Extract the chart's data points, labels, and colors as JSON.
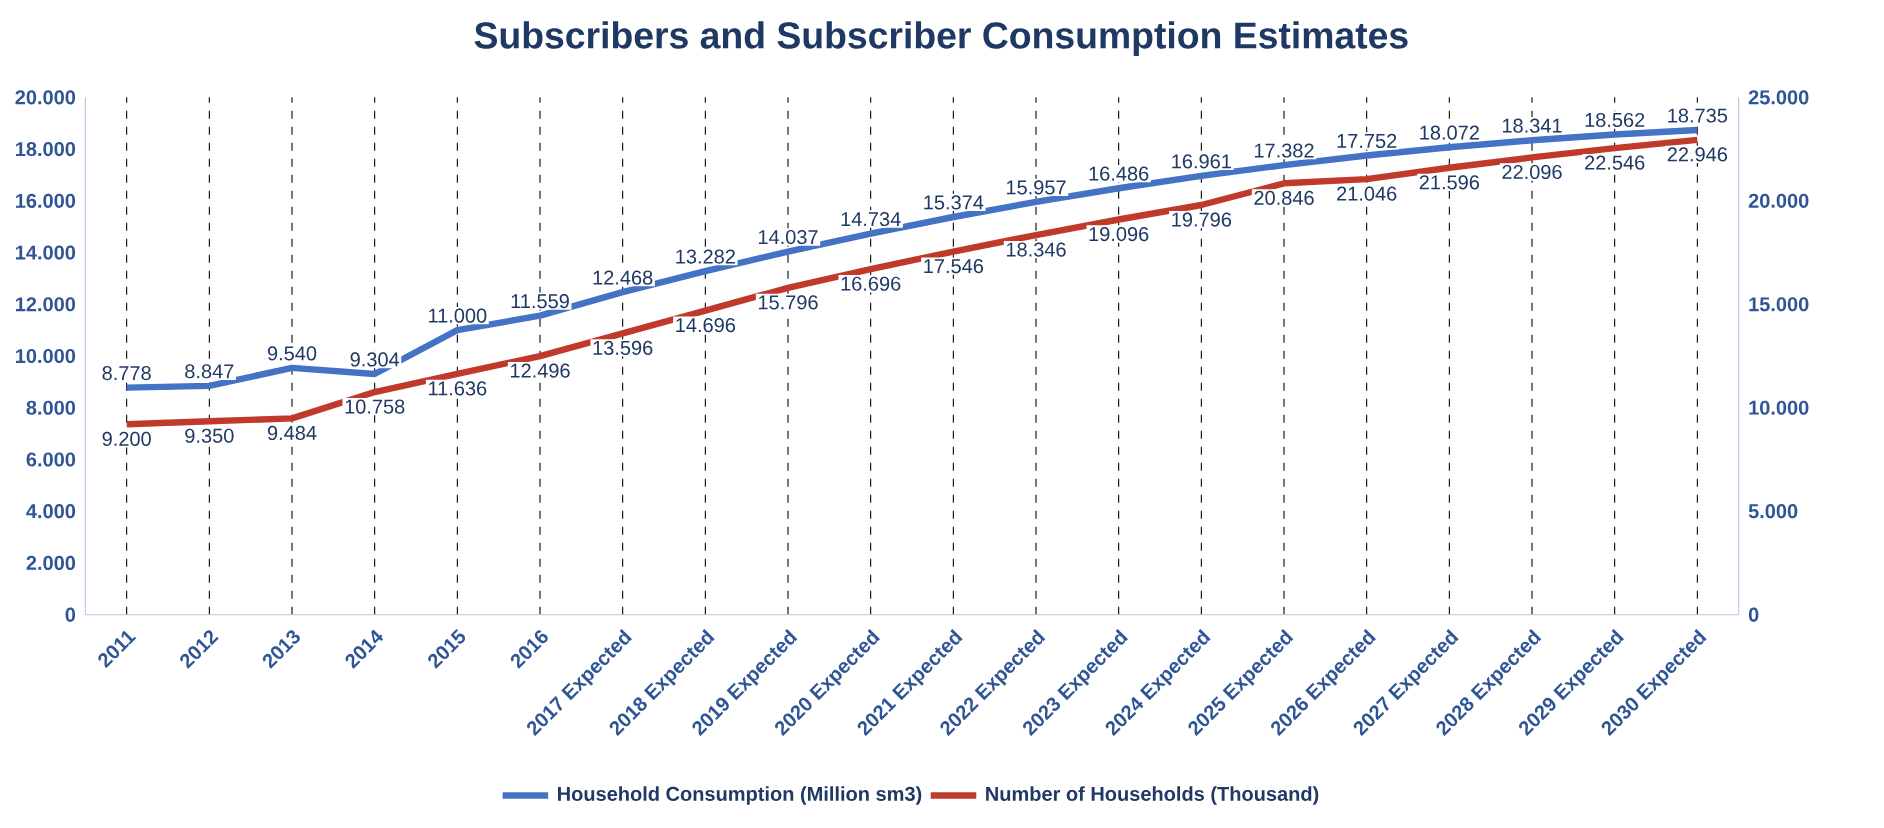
{
  "chart_data": {
    "type": "line",
    "title": "Subscribers and Subscriber Consumption Estimates",
    "categories": [
      "2011",
      "2012",
      "2013",
      "2014",
      "2015",
      "2016",
      "2017 Expected",
      "2018 Expected",
      "2019 Expected",
      "2020 Expected",
      "2021 Expected",
      "2022 Expected",
      "2023 Expected",
      "2024 Expected",
      "2025 Expected",
      "2026 Expected",
      "2027 Expected",
      "2028 Expected",
      "2029 Expected",
      "2030 Expected"
    ],
    "series": [
      {
        "name": "Household Consumption (Million sm3)",
        "color": "#4472c4",
        "axis": "y",
        "values": [
          8778,
          8847,
          9540,
          9304,
          11000,
          11559,
          12468,
          13282,
          14037,
          14734,
          15374,
          15957,
          16486,
          16961,
          17382,
          17752,
          18072,
          18341,
          18562,
          18735
        ],
        "value_labels": [
          "8.778",
          "8.847",
          "9.540",
          "9.304",
          "11.000",
          "11.559",
          "12.468",
          "13.282",
          "14.037",
          "14.734",
          "15.374",
          "15.957",
          "16.486",
          "16.961",
          "17.382",
          "17.752",
          "18.072",
          "18.341",
          "18.562",
          "18.735"
        ]
      },
      {
        "name": "Number of Households (Thousand)",
        "color": "#c0392b",
        "axis": "y2",
        "values": [
          9200,
          9350,
          9484,
          10758,
          11636,
          12496,
          13596,
          14696,
          15796,
          16696,
          17546,
          18346,
          19096,
          19796,
          20846,
          21046,
          21596,
          22096,
          22546,
          22946
        ],
        "value_labels": [
          "9.200",
          "9.350",
          "9.484",
          "10.758",
          "11.636",
          "12.496",
          "13.596",
          "14.696",
          "15.796",
          "16.696",
          "17.546",
          "18.346",
          "19.096",
          "19.796",
          "20.846",
          "21.046",
          "21.596",
          "22.096",
          "22.546",
          "22.946"
        ]
      }
    ],
    "ylim": [
      0,
      20000
    ],
    "yticks": [
      0,
      {
        "value": 2000,
        "label": "2.000"
      },
      {
        "value": 4000,
        "label": "4.000"
      },
      {
        "value": 6000,
        "label": "6.000"
      },
      {
        "value": 8000,
        "label": "8.000"
      },
      {
        "value": 10000,
        "label": "10.000"
      },
      {
        "value": 12000,
        "label": "12.000"
      },
      {
        "value": 14000,
        "label": "14.000"
      },
      {
        "value": 16000,
        "label": "16.000"
      },
      {
        "value": 18000,
        "label": "18.000"
      },
      {
        "value": 20000,
        "label": "20.000"
      }
    ],
    "y2lim": [
      0,
      25000
    ],
    "y2ticks": [
      0,
      {
        "value": 5000,
        "label": "5.000"
      },
      {
        "value": 10000,
        "label": "10.000"
      },
      {
        "value": 15000,
        "label": "15.000"
      },
      {
        "value": 20000,
        "label": "20.000"
      },
      {
        "value": 25000,
        "label": "25.000"
      }
    ],
    "grid": "x",
    "legend": "bottom",
    "marker": "none",
    "line_style": "solid"
  }
}
